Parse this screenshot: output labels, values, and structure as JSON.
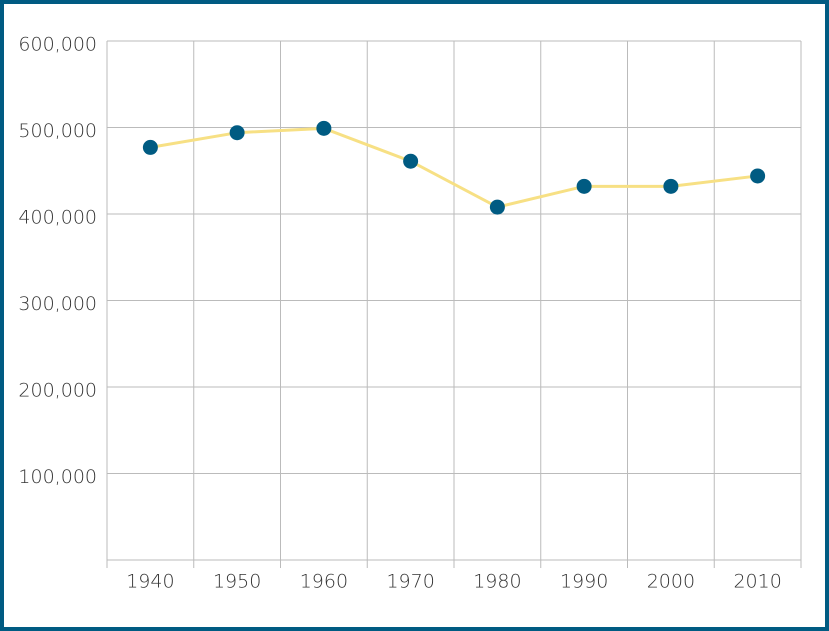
{
  "chart_data": {
    "type": "line",
    "categories": [
      "1940",
      "1950",
      "1960",
      "1970",
      "1980",
      "1990",
      "2000",
      "2010"
    ],
    "series": [
      {
        "values": [
          477000,
          494000,
          499000,
          461000,
          408000,
          432000,
          432000,
          444000
        ],
        "color": "#f7e084",
        "marker_color": "#005b82"
      }
    ],
    "ylim": [
      0,
      600000
    ],
    "yticks": [
      {
        "value": 100000,
        "label": "100,000"
      },
      {
        "value": 200000,
        "label": "200,000"
      },
      {
        "value": 300000,
        "label": "300,000"
      },
      {
        "value": 400000,
        "label": "400,000"
      },
      {
        "value": 500000,
        "label": "500,000"
      },
      {
        "value": 600000,
        "label": "600,000"
      }
    ],
    "grid": true
  }
}
